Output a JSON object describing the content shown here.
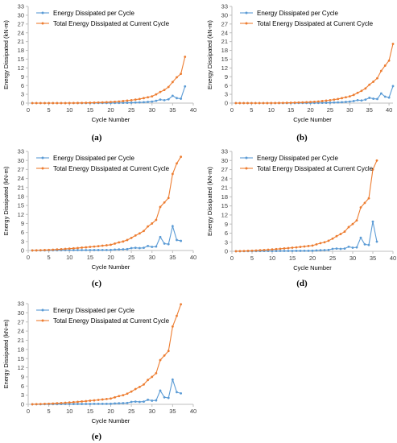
{
  "colors": {
    "per_cycle": "#5b9bd5",
    "total": "#ed7d31",
    "axis": "#bfbfbf"
  },
  "chart_data": [
    {
      "type": "line",
      "caption": "(a)",
      "xlabel": "Cycle Number",
      "ylabel": "Energy Dissipated (kN-m)",
      "xlim": [
        0,
        40
      ],
      "ylim": [
        0,
        33
      ],
      "xticks": [
        0,
        5,
        10,
        15,
        20,
        25,
        30,
        35,
        40
      ],
      "yticks": [
        0,
        3,
        6,
        9,
        12,
        15,
        18,
        21,
        24,
        27,
        30,
        33
      ],
      "legend_position": "top-left",
      "grid": false,
      "series": [
        {
          "name": "Energy Dissipated per Cycle",
          "color": "#5b9bd5",
          "x": [
            1,
            2,
            3,
            4,
            5,
            6,
            7,
            8,
            9,
            10,
            11,
            12,
            13,
            14,
            15,
            16,
            17,
            18,
            19,
            20,
            21,
            22,
            23,
            24,
            25,
            26,
            27,
            28,
            29,
            30,
            31,
            32,
            33,
            34,
            35,
            36,
            37,
            38
          ],
          "y": [
            0,
            0,
            0,
            0,
            0,
            0,
            0,
            0,
            0,
            0,
            0,
            0,
            0,
            0,
            0.02,
            0.02,
            0.03,
            0.03,
            0.04,
            0.05,
            0.06,
            0.07,
            0.1,
            0.12,
            0.15,
            0.2,
            0.25,
            0.3,
            0.4,
            0.5,
            0.8,
            1.2,
            1.0,
            1.3,
            2.5,
            1.7,
            1.5,
            5.7
          ]
        },
        {
          "name": "Total Energy Dissipated at Current Cycle",
          "color": "#ed7d31",
          "x": [
            1,
            2,
            3,
            4,
            5,
            6,
            7,
            8,
            9,
            10,
            11,
            12,
            13,
            14,
            15,
            16,
            17,
            18,
            19,
            20,
            21,
            22,
            23,
            24,
            25,
            26,
            27,
            28,
            29,
            30,
            31,
            32,
            33,
            34,
            35,
            36,
            37,
            38
          ],
          "y": [
            0,
            0,
            0,
            0,
            0,
            0,
            0,
            0,
            0.01,
            0.02,
            0.03,
            0.05,
            0.07,
            0.09,
            0.12,
            0.15,
            0.2,
            0.25,
            0.3,
            0.37,
            0.45,
            0.55,
            0.7,
            0.85,
            1.0,
            1.2,
            1.4,
            1.7,
            2.0,
            2.3,
            3.0,
            3.8,
            4.5,
            5.5,
            7.2,
            8.8,
            10.0,
            15.8
          ]
        }
      ]
    },
    {
      "type": "line",
      "caption": "(b)",
      "xlabel": "Cycle Number",
      "ylabel": "Energy Dissipated (kN-m)",
      "xlim": [
        0,
        41
      ],
      "ylim": [
        0,
        33
      ],
      "xticks": [
        0,
        5,
        10,
        15,
        20,
        25,
        30,
        35,
        40
      ],
      "yticks": [
        0,
        3,
        6,
        9,
        12,
        15,
        18,
        21,
        24,
        27,
        30,
        33
      ],
      "legend_position": "top-left",
      "grid": false,
      "series": [
        {
          "name": "Energy Dissipated per Cycle",
          "color": "#5b9bd5",
          "x": [
            1,
            2,
            3,
            4,
            5,
            6,
            7,
            8,
            9,
            10,
            11,
            12,
            13,
            14,
            15,
            16,
            17,
            18,
            19,
            20,
            21,
            22,
            23,
            24,
            25,
            26,
            27,
            28,
            29,
            30,
            31,
            32,
            33,
            34,
            35,
            36,
            37,
            38,
            39,
            40,
            41
          ],
          "y": [
            0,
            0,
            0,
            0,
            0,
            0,
            0,
            0,
            0,
            0,
            0,
            0,
            0,
            0,
            0.02,
            0.02,
            0.03,
            0.03,
            0.04,
            0.05,
            0.06,
            0.07,
            0.1,
            0.12,
            0.15,
            0.2,
            0.25,
            0.3,
            0.4,
            0.5,
            0.7,
            1.0,
            0.9,
            1.2,
            1.8,
            1.5,
            1.4,
            3.3,
            2.2,
            1.9,
            5.8
          ]
        },
        {
          "name": "Total Energy Dissipated at Current Cycle",
          "color": "#ed7d31",
          "x": [
            1,
            2,
            3,
            4,
            5,
            6,
            7,
            8,
            9,
            10,
            11,
            12,
            13,
            14,
            15,
            16,
            17,
            18,
            19,
            20,
            21,
            22,
            23,
            24,
            25,
            26,
            27,
            28,
            29,
            30,
            31,
            32,
            33,
            34,
            35,
            36,
            37,
            38,
            39,
            40,
            41
          ],
          "y": [
            0,
            0,
            0,
            0,
            0,
            0,
            0,
            0,
            0.01,
            0.02,
            0.03,
            0.05,
            0.07,
            0.09,
            0.12,
            0.15,
            0.2,
            0.25,
            0.3,
            0.37,
            0.45,
            0.55,
            0.7,
            0.85,
            1.0,
            1.2,
            1.4,
            1.7,
            2.0,
            2.3,
            2.8,
            3.5,
            4.2,
            5.0,
            6.3,
            7.3,
            8.5,
            11.0,
            12.8,
            14.5,
            20.2
          ]
        }
      ]
    },
    {
      "type": "line",
      "caption": "(c)",
      "xlabel": "Cycle Number",
      "ylabel": "Energy Dissipated (kN-m)",
      "xlim": [
        0,
        40
      ],
      "ylim": [
        0,
        33
      ],
      "xticks": [
        0,
        5,
        10,
        15,
        20,
        25,
        30,
        35,
        40
      ],
      "yticks": [
        0,
        3,
        6,
        9,
        12,
        15,
        18,
        21,
        24,
        27,
        30,
        33
      ],
      "legend_position": "top-left",
      "grid": false,
      "series": [
        {
          "name": "Energy Dissipated per Cycle",
          "color": "#5b9bd5",
          "x": [
            1,
            2,
            3,
            4,
            5,
            6,
            7,
            8,
            9,
            10,
            11,
            12,
            13,
            14,
            15,
            16,
            17,
            18,
            19,
            20,
            21,
            22,
            23,
            24,
            25,
            26,
            27,
            28,
            29,
            30,
            31,
            32,
            33,
            34,
            35,
            36,
            37
          ],
          "y": [
            0.02,
            0.03,
            0.04,
            0.05,
            0.06,
            0.07,
            0.08,
            0.09,
            0.1,
            0.1,
            0.11,
            0.12,
            0.12,
            0.13,
            0.14,
            0.15,
            0.15,
            0.16,
            0.17,
            0.18,
            0.3,
            0.35,
            0.4,
            0.45,
            0.8,
            0.9,
            0.8,
            0.9,
            1.5,
            1.2,
            1.3,
            4.5,
            2.3,
            2.1,
            8.1,
            3.5,
            3.2
          ]
        },
        {
          "name": "Total Energy Dissipated at Current Cycle",
          "color": "#ed7d31",
          "x": [
            1,
            2,
            3,
            4,
            5,
            6,
            7,
            8,
            9,
            10,
            11,
            12,
            13,
            14,
            15,
            16,
            17,
            18,
            19,
            20,
            21,
            22,
            23,
            24,
            25,
            26,
            27,
            28,
            29,
            30,
            31,
            32,
            33,
            34,
            35,
            36,
            37
          ],
          "y": [
            0.02,
            0.05,
            0.1,
            0.15,
            0.2,
            0.27,
            0.35,
            0.43,
            0.52,
            0.62,
            0.72,
            0.82,
            0.95,
            1.05,
            1.2,
            1.3,
            1.45,
            1.6,
            1.75,
            1.9,
            2.3,
            2.7,
            3.0,
            3.5,
            4.2,
            5.0,
            5.7,
            6.5,
            8.0,
            9.0,
            10.2,
            14.5,
            16.0,
            17.5,
            25.5,
            29.0,
            31.2
          ]
        }
      ]
    },
    {
      "type": "line",
      "caption": "(d)",
      "xlabel": "Cycle Number",
      "ylabel": "Energy Dissipated (kN-m)",
      "xlim": [
        0,
        40
      ],
      "ylim": [
        0,
        33
      ],
      "xticks": [
        0,
        5,
        10,
        15,
        20,
        25,
        30,
        35,
        40
      ],
      "yticks": [
        0,
        3,
        6,
        9,
        12,
        15,
        18,
        21,
        24,
        27,
        30,
        33
      ],
      "legend_position": "top-left",
      "grid": false,
      "series": [
        {
          "name": "Energy Dissipated per Cycle",
          "color": "#5b9bd5",
          "x": [
            1,
            2,
            3,
            4,
            5,
            6,
            7,
            8,
            9,
            10,
            11,
            12,
            13,
            14,
            15,
            16,
            17,
            18,
            19,
            20,
            21,
            22,
            23,
            24,
            25,
            26,
            27,
            28,
            29,
            30,
            31,
            32,
            33,
            34,
            35,
            36
          ],
          "y": [
            0.02,
            0.03,
            0.04,
            0.05,
            0.06,
            0.07,
            0.08,
            0.09,
            0.1,
            0.1,
            0.11,
            0.12,
            0.12,
            0.13,
            0.14,
            0.15,
            0.15,
            0.16,
            0.17,
            0.18,
            0.3,
            0.35,
            0.4,
            0.45,
            0.8,
            0.9,
            0.8,
            0.9,
            1.5,
            1.2,
            1.3,
            4.5,
            2.3,
            2.1,
            9.8,
            3.2
          ]
        },
        {
          "name": "Total Energy Dissipated at Current Cycle",
          "color": "#ed7d31",
          "x": [
            1,
            2,
            3,
            4,
            5,
            6,
            7,
            8,
            9,
            10,
            11,
            12,
            13,
            14,
            15,
            16,
            17,
            18,
            19,
            20,
            21,
            22,
            23,
            24,
            25,
            26,
            27,
            28,
            29,
            30,
            31,
            32,
            33,
            34,
            35,
            36
          ],
          "y": [
            0.02,
            0.05,
            0.1,
            0.15,
            0.2,
            0.27,
            0.35,
            0.43,
            0.52,
            0.62,
            0.72,
            0.82,
            0.95,
            1.05,
            1.2,
            1.3,
            1.45,
            1.6,
            1.75,
            1.9,
            2.3,
            2.7,
            3.0,
            3.5,
            4.2,
            5.0,
            5.7,
            6.5,
            8.0,
            9.0,
            10.2,
            14.5,
            16.0,
            17.5,
            27.0,
            30.0
          ]
        }
      ]
    },
    {
      "type": "line",
      "caption": "(e)",
      "xlabel": "Cycle Number",
      "ylabel": "Energy Dissipated (kN-m)",
      "xlim": [
        0,
        40
      ],
      "ylim": [
        0,
        33
      ],
      "xticks": [
        0,
        5,
        10,
        15,
        20,
        25,
        30,
        35,
        40
      ],
      "yticks": [
        0,
        3,
        6,
        9,
        12,
        15,
        18,
        21,
        24,
        27,
        30,
        33
      ],
      "legend_position": "top-left",
      "grid": false,
      "series": [
        {
          "name": "Energy Dissipated per Cycle",
          "color": "#5b9bd5",
          "x": [
            1,
            2,
            3,
            4,
            5,
            6,
            7,
            8,
            9,
            10,
            11,
            12,
            13,
            14,
            15,
            16,
            17,
            18,
            19,
            20,
            21,
            22,
            23,
            24,
            25,
            26,
            27,
            28,
            29,
            30,
            31,
            32,
            33,
            34,
            35,
            36,
            37
          ],
          "y": [
            0.02,
            0.03,
            0.04,
            0.05,
            0.06,
            0.07,
            0.08,
            0.09,
            0.1,
            0.1,
            0.11,
            0.12,
            0.12,
            0.13,
            0.14,
            0.15,
            0.15,
            0.16,
            0.17,
            0.18,
            0.3,
            0.35,
            0.4,
            0.45,
            0.8,
            0.9,
            0.8,
            0.9,
            1.5,
            1.2,
            1.3,
            4.5,
            2.3,
            2.1,
            8.1,
            4.0,
            3.6
          ]
        },
        {
          "name": "Total Energy Dissipated at Current Cycle",
          "color": "#ed7d31",
          "x": [
            1,
            2,
            3,
            4,
            5,
            6,
            7,
            8,
            9,
            10,
            11,
            12,
            13,
            14,
            15,
            16,
            17,
            18,
            19,
            20,
            21,
            22,
            23,
            24,
            25,
            26,
            27,
            28,
            29,
            30,
            31,
            32,
            33,
            34,
            35,
            36,
            37
          ],
          "y": [
            0.02,
            0.05,
            0.1,
            0.15,
            0.2,
            0.27,
            0.35,
            0.43,
            0.52,
            0.62,
            0.72,
            0.82,
            0.95,
            1.05,
            1.2,
            1.3,
            1.45,
            1.6,
            1.75,
            1.9,
            2.3,
            2.7,
            3.0,
            3.5,
            4.2,
            5.0,
            5.7,
            6.5,
            8.0,
            9.0,
            10.2,
            14.5,
            16.0,
            17.5,
            25.5,
            29.0,
            32.8
          ]
        }
      ]
    }
  ]
}
